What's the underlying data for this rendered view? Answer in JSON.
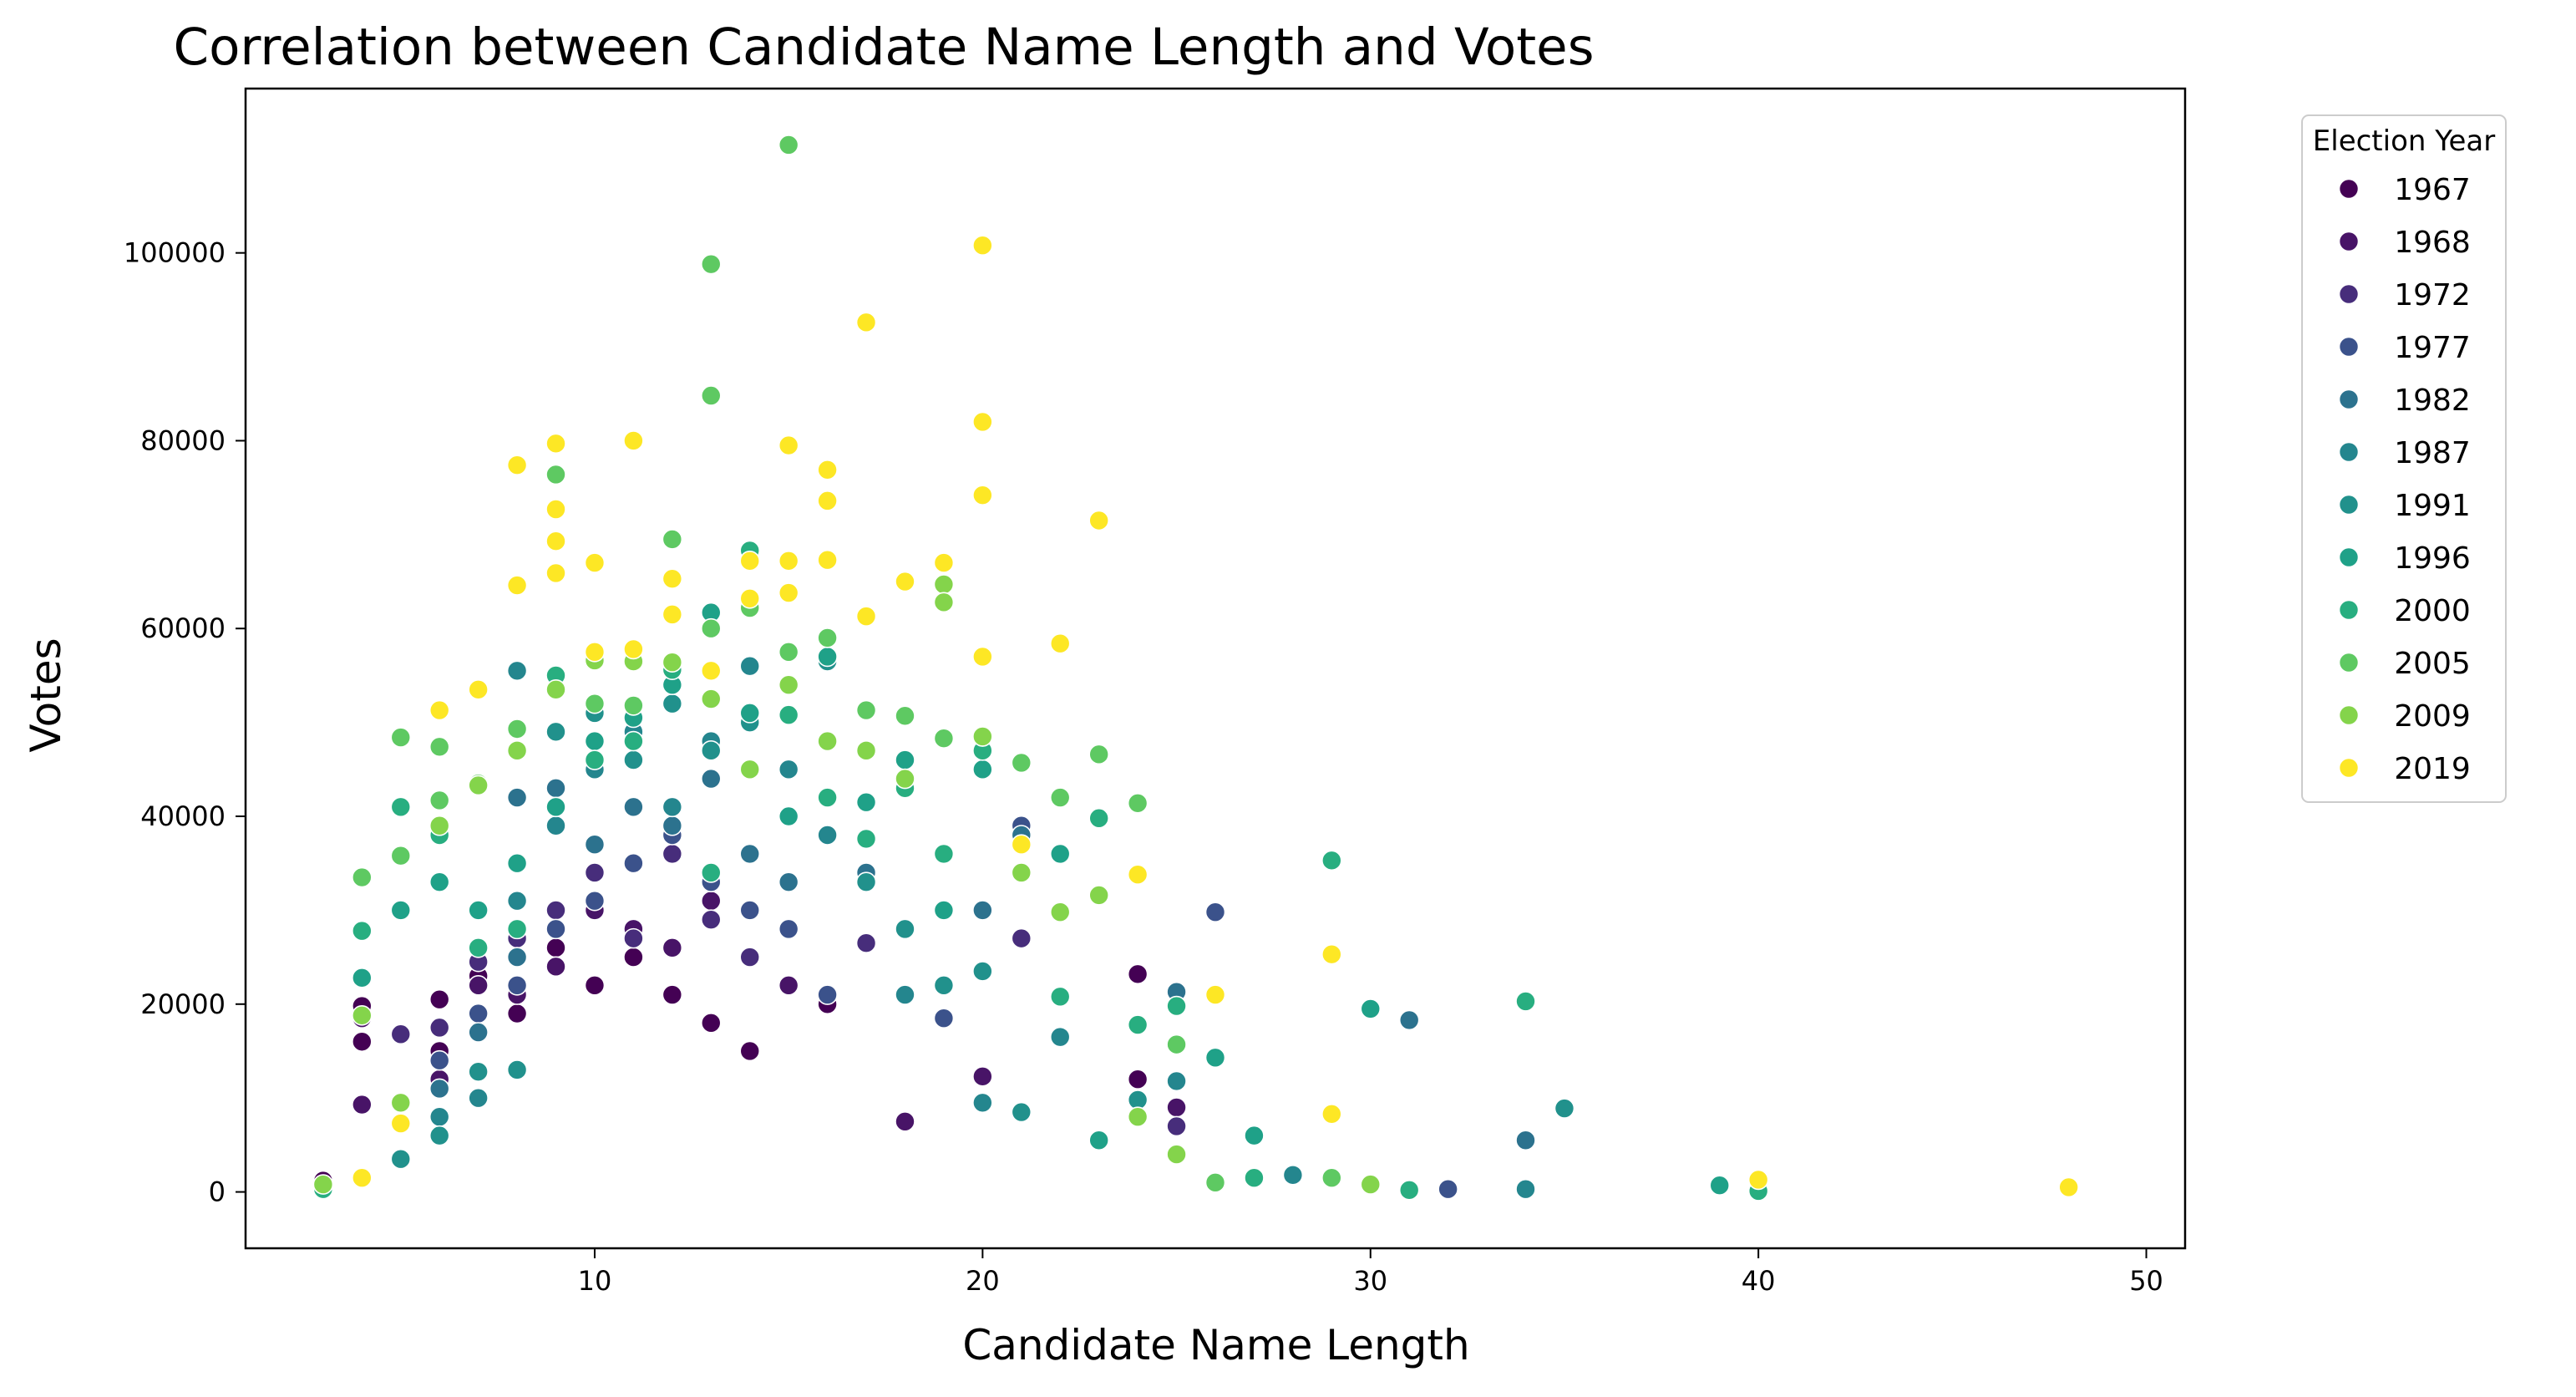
{
  "chart_data": {
    "type": "scatter",
    "title": "Correlation between Candidate Name Length and Votes",
    "xlabel": "Candidate Name Length",
    "ylabel": "Votes",
    "xlim": [
      1,
      51
    ],
    "ylim": [
      -6000,
      117500
    ],
    "xticks": [
      10,
      20,
      30,
      40,
      50
    ],
    "yticks": [
      0,
      20000,
      40000,
      60000,
      80000,
      100000
    ],
    "grid": false,
    "legend": {
      "title": "Election Year",
      "placement": "outside-top-right",
      "entries": [
        "1967",
        "1968",
        "1972",
        "1977",
        "1982",
        "1987",
        "1991",
        "1996",
        "2000",
        "2005",
        "2009",
        "2019"
      ]
    },
    "colors": {
      "1967": "#440154",
      "1968": "#481467",
      "1972": "#472d7b",
      "1977": "#3b528b",
      "1982": "#2c728e",
      "1987": "#24868e",
      "1991": "#21918c",
      "1996": "#1fa188",
      "2000": "#28ae80",
      "2005": "#5ec962",
      "2009": "#84d44b",
      "2019": "#fde725"
    },
    "series": [
      {
        "name": "1967",
        "points": [
          [
            3,
            1200
          ],
          [
            4,
            19800
          ],
          [
            4,
            16000
          ],
          [
            6,
            20500
          ],
          [
            6,
            15000
          ],
          [
            7,
            23000
          ],
          [
            8,
            19000
          ],
          [
            9,
            26000
          ],
          [
            10,
            22000
          ],
          [
            11,
            25000
          ],
          [
            12,
            21000
          ],
          [
            13,
            18000
          ],
          [
            14,
            15000
          ],
          [
            16,
            20000
          ],
          [
            24,
            23200
          ],
          [
            24,
            12000
          ]
        ]
      },
      {
        "name": "1968",
        "points": [
          [
            4,
            9300
          ],
          [
            4,
            18500
          ],
          [
            6,
            12000
          ],
          [
            7,
            22000
          ],
          [
            8,
            21000
          ],
          [
            9,
            24000
          ],
          [
            10,
            30000
          ],
          [
            11,
            28000
          ],
          [
            12,
            26000
          ],
          [
            13,
            31000
          ],
          [
            15,
            22000
          ],
          [
            18,
            7500
          ],
          [
            20,
            12300
          ],
          [
            25,
            9000
          ]
        ]
      },
      {
        "name": "1972",
        "points": [
          [
            5,
            16800
          ],
          [
            6,
            17500
          ],
          [
            7,
            24500
          ],
          [
            8,
            27000
          ],
          [
            9,
            30000
          ],
          [
            10,
            34000
          ],
          [
            11,
            27000
          ],
          [
            12,
            36000
          ],
          [
            13,
            29000
          ],
          [
            14,
            25000
          ],
          [
            17,
            26500
          ],
          [
            21,
            27000
          ],
          [
            25,
            7000
          ]
        ]
      },
      {
        "name": "1977",
        "points": [
          [
            6,
            14000
          ],
          [
            7,
            19000
          ],
          [
            8,
            22000
          ],
          [
            9,
            28000
          ],
          [
            10,
            31000
          ],
          [
            11,
            35000
          ],
          [
            12,
            38000
          ],
          [
            13,
            33000
          ],
          [
            14,
            30000
          ],
          [
            15,
            28000
          ],
          [
            16,
            21000
          ],
          [
            19,
            18500
          ],
          [
            21,
            39000
          ],
          [
            26,
            29800
          ],
          [
            32,
            300
          ]
        ]
      },
      {
        "name": "1982",
        "points": [
          [
            6,
            11000
          ],
          [
            7,
            17000
          ],
          [
            8,
            25000
          ],
          [
            8,
            42000
          ],
          [
            9,
            43000
          ],
          [
            10,
            37000
          ],
          [
            11,
            41000
          ],
          [
            12,
            39000
          ],
          [
            13,
            44000
          ],
          [
            14,
            36000
          ],
          [
            15,
            33000
          ],
          [
            17,
            34000
          ],
          [
            20,
            30000
          ],
          [
            21,
            38000
          ],
          [
            25,
            21300
          ],
          [
            31,
            18300
          ],
          [
            34,
            5500
          ]
        ]
      },
      {
        "name": "1987",
        "points": [
          [
            6,
            8000
          ],
          [
            7,
            10000
          ],
          [
            8,
            55500
          ],
          [
            8,
            31000
          ],
          [
            9,
            39000
          ],
          [
            10,
            45000
          ],
          [
            11,
            49000
          ],
          [
            12,
            41000
          ],
          [
            13,
            48000
          ],
          [
            14,
            56000
          ],
          [
            15,
            45000
          ],
          [
            16,
            38000
          ],
          [
            18,
            21000
          ],
          [
            20,
            9500
          ],
          [
            22,
            16500
          ],
          [
            25,
            11800
          ],
          [
            28,
            1800
          ],
          [
            34,
            300
          ]
        ]
      },
      {
        "name": "1991",
        "points": [
          [
            5,
            3500
          ],
          [
            6,
            6000
          ],
          [
            7,
            12800
          ],
          [
            8,
            13000
          ],
          [
            9,
            49000
          ],
          [
            10,
            51000
          ],
          [
            11,
            46000
          ],
          [
            12,
            52000
          ],
          [
            13,
            47000
          ],
          [
            14,
            50000
          ],
          [
            16,
            56500
          ],
          [
            17,
            33000
          ],
          [
            18,
            28000
          ],
          [
            19,
            22000
          ],
          [
            20,
            23500
          ],
          [
            21,
            8500
          ],
          [
            24,
            9800
          ],
          [
            35,
            8900
          ]
        ]
      },
      {
        "name": "1996",
        "points": [
          [
            4,
            22800
          ],
          [
            5,
            30000
          ],
          [
            6,
            33000
          ],
          [
            7,
            30000
          ],
          [
            8,
            35000
          ],
          [
            9,
            41000
          ],
          [
            10,
            48000
          ],
          [
            11,
            50500
          ],
          [
            12,
            54000
          ],
          [
            13,
            61700
          ],
          [
            14,
            51000
          ],
          [
            15,
            40000
          ],
          [
            16,
            57000
          ],
          [
            17,
            41500
          ],
          [
            18,
            46000
          ],
          [
            19,
            30000
          ],
          [
            20,
            45000
          ],
          [
            22,
            36000
          ],
          [
            23,
            5500
          ],
          [
            26,
            14300
          ],
          [
            27,
            6000
          ],
          [
            30,
            19500
          ],
          [
            39,
            700
          ]
        ]
      },
      {
        "name": "2000",
        "points": [
          [
            3,
            300
          ],
          [
            4,
            27800
          ],
          [
            5,
            41000
          ],
          [
            6,
            38000
          ],
          [
            7,
            26000
          ],
          [
            8,
            28000
          ],
          [
            9,
            55000
          ],
          [
            10,
            46000
          ],
          [
            11,
            48000
          ],
          [
            12,
            55600
          ],
          [
            13,
            34000
          ],
          [
            14,
            68300
          ],
          [
            15,
            50800
          ],
          [
            16,
            42000
          ],
          [
            17,
            37600
          ],
          [
            18,
            43000
          ],
          [
            19,
            36000
          ],
          [
            20,
            47000
          ],
          [
            22,
            20800
          ],
          [
            23,
            39800
          ],
          [
            24,
            17800
          ],
          [
            25,
            19800
          ],
          [
            27,
            1500
          ],
          [
            29,
            35300
          ],
          [
            31,
            200
          ],
          [
            34,
            20300
          ],
          [
            40,
            100
          ]
        ]
      },
      {
        "name": "2005",
        "points": [
          [
            4,
            33500
          ],
          [
            5,
            48400
          ],
          [
            5,
            35800
          ],
          [
            6,
            47400
          ],
          [
            6,
            41700
          ],
          [
            7,
            43500
          ],
          [
            8,
            49300
          ],
          [
            9,
            76400
          ],
          [
            10,
            52000
          ],
          [
            11,
            51800
          ],
          [
            12,
            69500
          ],
          [
            13,
            98800
          ],
          [
            13,
            84800
          ],
          [
            13,
            60000
          ],
          [
            14,
            62200
          ],
          [
            15,
            111500
          ],
          [
            15,
            57500
          ],
          [
            16,
            59000
          ],
          [
            17,
            51300
          ],
          [
            18,
            50700
          ],
          [
            19,
            48300
          ],
          [
            20,
            48500
          ],
          [
            21,
            45700
          ],
          [
            22,
            42000
          ],
          [
            23,
            46600
          ],
          [
            24,
            41400
          ],
          [
            25,
            15700
          ],
          [
            26,
            1000
          ],
          [
            29,
            1500
          ]
        ]
      },
      {
        "name": "2009",
        "points": [
          [
            3,
            800
          ],
          [
            4,
            18800
          ],
          [
            5,
            9500
          ],
          [
            6,
            39000
          ],
          [
            7,
            43300
          ],
          [
            8,
            47000
          ],
          [
            9,
            53500
          ],
          [
            10,
            56600
          ],
          [
            11,
            56500
          ],
          [
            12,
            56400
          ],
          [
            13,
            52500
          ],
          [
            14,
            45000
          ],
          [
            15,
            54000
          ],
          [
            16,
            48000
          ],
          [
            17,
            47000
          ],
          [
            18,
            44000
          ],
          [
            19,
            64700
          ],
          [
            19,
            62800
          ],
          [
            20,
            48500
          ],
          [
            21,
            34000
          ],
          [
            22,
            29800
          ],
          [
            23,
            31600
          ],
          [
            24,
            8000
          ],
          [
            25,
            4000
          ],
          [
            30,
            800
          ]
        ]
      },
      {
        "name": "2019",
        "points": [
          [
            4,
            1500
          ],
          [
            5,
            7300
          ],
          [
            6,
            51300
          ],
          [
            7,
            53500
          ],
          [
            8,
            77400
          ],
          [
            8,
            64600
          ],
          [
            9,
            79700
          ],
          [
            9,
            72700
          ],
          [
            9,
            69300
          ],
          [
            9,
            65900
          ],
          [
            10,
            67000
          ],
          [
            10,
            57500
          ],
          [
            11,
            80000
          ],
          [
            11,
            57800
          ],
          [
            12,
            65300
          ],
          [
            12,
            61500
          ],
          [
            13,
            55500
          ],
          [
            14,
            67200
          ],
          [
            14,
            63200
          ],
          [
            15,
            79500
          ],
          [
            15,
            67200
          ],
          [
            15,
            63800
          ],
          [
            16,
            76900
          ],
          [
            16,
            73600
          ],
          [
            16,
            67300
          ],
          [
            17,
            92600
          ],
          [
            17,
            61300
          ],
          [
            18,
            65000
          ],
          [
            19,
            67000
          ],
          [
            20,
            100800
          ],
          [
            20,
            82000
          ],
          [
            20,
            74200
          ],
          [
            20,
            57000
          ],
          [
            21,
            37000
          ],
          [
            22,
            58400
          ],
          [
            23,
            71500
          ],
          [
            24,
            33800
          ],
          [
            26,
            21000
          ],
          [
            29,
            25300
          ],
          [
            29,
            8300
          ],
          [
            40,
            1300
          ],
          [
            48,
            500
          ]
        ]
      }
    ]
  }
}
